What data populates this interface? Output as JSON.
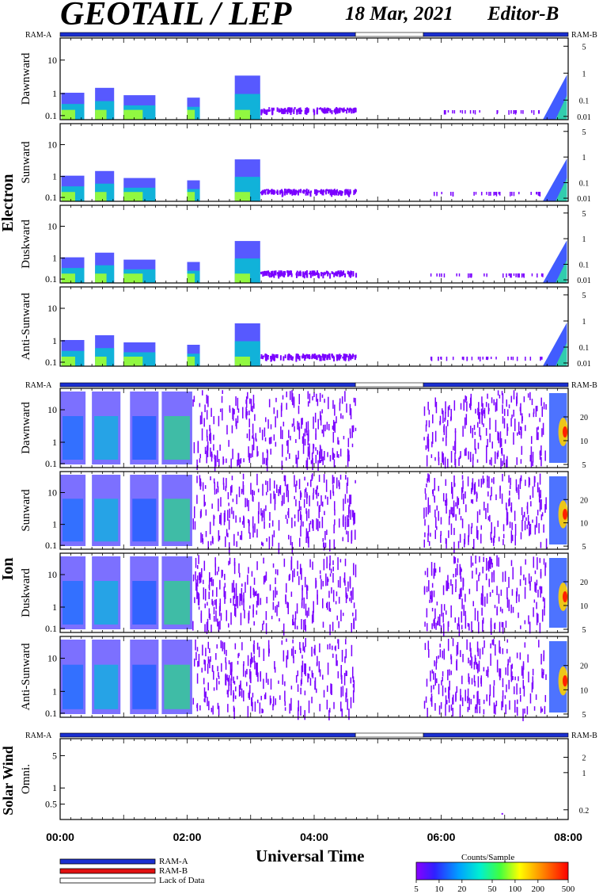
{
  "header": {
    "instrument": "GEOTAIL / LEP",
    "date": "18 Mar, 2021",
    "editor": "Editor-B"
  },
  "chart_data": {
    "type": "heatmap",
    "xlabel": "Universal Time",
    "x_ticks": [
      "00:00",
      "02:00",
      "04:00",
      "06:00",
      "08:00"
    ],
    "x_range_hours": [
      0,
      8
    ],
    "ram_bar_labels": {
      "left": "RAM-A",
      "right": "RAM-B"
    },
    "groups": [
      {
        "name": "Electron",
        "y_ticks_left": [
          "10",
          "1",
          "0.1"
        ],
        "panels": [
          {
            "label": "Dawnward",
            "y_ticks_right": [
              "5",
              "1",
              "0.1",
              "0.01"
            ]
          },
          {
            "label": "Sunward",
            "y_ticks_right": [
              "5",
              "1",
              "0.1",
              "0.01"
            ]
          },
          {
            "label": "Duskward",
            "y_ticks_right": [
              "5",
              "1",
              "0.1",
              "0.01"
            ]
          },
          {
            "label": "Anti-Sunward",
            "y_ticks_right": [
              "5",
              "1",
              "0.1",
              "0.01"
            ]
          }
        ]
      },
      {
        "name": "Ion",
        "y_ticks_left": [
          "10",
          "1",
          "0.1"
        ],
        "panels": [
          {
            "label": "Dawnward",
            "y_ticks_right": [
              "20",
              "10",
              "5"
            ]
          },
          {
            "label": "Sunward",
            "y_ticks_right": [
              "20",
              "10",
              "5"
            ]
          },
          {
            "label": "Duskward",
            "y_ticks_right": [
              "20",
              "10",
              "5"
            ]
          },
          {
            "label": "Anti-Sunward",
            "y_ticks_right": [
              "20",
              "10",
              "5"
            ]
          }
        ]
      },
      {
        "name": "Solar Wind",
        "y_ticks_left": [
          "5",
          "1",
          "0.5"
        ],
        "panels": [
          {
            "label": "Omni.",
            "y_ticks_right": [
              "2",
              "1",
              "0.2"
            ]
          }
        ]
      }
    ],
    "ram_status_segments": [
      {
        "start_h": 0.0,
        "end_h": 4.65,
        "status": "RAM-A"
      },
      {
        "start_h": 4.65,
        "end_h": 5.72,
        "status": "Lack of Data"
      },
      {
        "start_h": 5.72,
        "end_h": 8.0,
        "status": "RAM-A"
      }
    ],
    "legend": [
      {
        "label": "RAM-A",
        "color": "#1a2fd0"
      },
      {
        "label": "RAM-B",
        "color": "#e01010"
      },
      {
        "label": "Lack of Data",
        "color": "#ffffff"
      }
    ],
    "colorbar": {
      "title": "Counts/Sample",
      "ticks": [
        "5",
        "10",
        "20",
        "50",
        "100",
        "200",
        "500"
      ],
      "range": [
        5,
        500
      ],
      "scale": "log"
    }
  }
}
